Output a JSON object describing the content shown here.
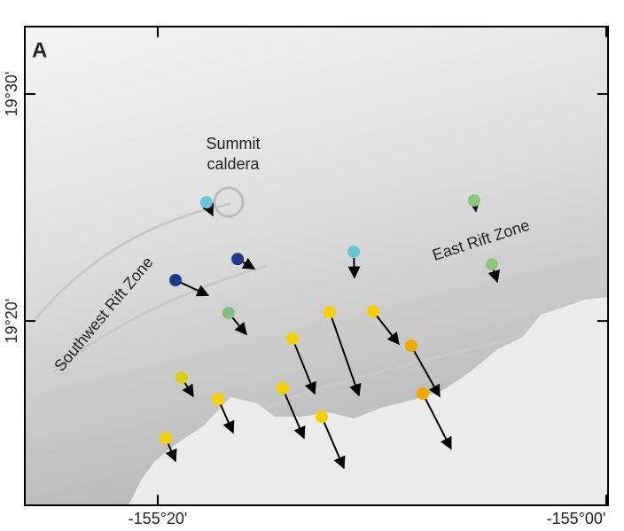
{
  "chart_data": {
    "type": "vector-map",
    "panel_label": "A",
    "labels": {
      "summit": [
        "Summit",
        "caldera"
      ],
      "east_rift": "East Rift Zone",
      "southwest_rift": "Southwest Rift Zone"
    },
    "xlim": [
      -25.93,
      0.08
    ],
    "ylim": [
      11.88,
      32.97
    ],
    "xticks": [
      {
        "value": -20,
        "label": "-155°20'"
      },
      {
        "value": 0,
        "label": "-155°00'"
      }
    ],
    "yticks": [
      {
        "value": 30,
        "label": "19°30'"
      },
      {
        "value": 20,
        "label": "19°20'"
      }
    ],
    "stations": [
      {
        "x": -17.83,
        "y": 25.23,
        "tip_x": -17.55,
        "tip_y": 24.65,
        "color": "#6cc4d8"
      },
      {
        "x": -16.44,
        "y": 22.73,
        "tip_x": -15.69,
        "tip_y": 22.3,
        "color": "#1f3a8a"
      },
      {
        "x": -19.21,
        "y": 21.8,
        "tip_x": -17.75,
        "tip_y": 21.13,
        "color": "#1f3a8a"
      },
      {
        "x": -16.84,
        "y": 20.35,
        "tip_x": -16.05,
        "tip_y": 19.41,
        "color": "#82c080"
      },
      {
        "x": -11.26,
        "y": 23.05,
        "tip_x": -11.23,
        "tip_y": 21.91,
        "color": "#6cc4d8"
      },
      {
        "x": -5.89,
        "y": 25.31,
        "tip_x": -5.81,
        "tip_y": 24.84,
        "color": "#8cc47c"
      },
      {
        "x": -5.1,
        "y": 22.5,
        "tip_x": -4.86,
        "tip_y": 21.72,
        "color": "#8cc47c"
      },
      {
        "x": -10.4,
        "y": 20.43,
        "tip_x": -9.25,
        "tip_y": 18.98,
        "color": "#f5d000"
      },
      {
        "x": -8.7,
        "y": 18.91,
        "tip_x": -7.43,
        "tip_y": 16.68,
        "color": "#f0a800"
      },
      {
        "x": -12.33,
        "y": 20.39,
        "tip_x": -11.03,
        "tip_y": 16.72,
        "color": "#f5d000"
      },
      {
        "x": -13.99,
        "y": 19.22,
        "tip_x": -13.0,
        "tip_y": 16.8,
        "color": "#f5d000"
      },
      {
        "x": -18.93,
        "y": 17.5,
        "tip_x": -18.42,
        "tip_y": 16.68,
        "color": "#d8d010"
      },
      {
        "x": -17.31,
        "y": 16.56,
        "tip_x": -16.64,
        "tip_y": 15.08,
        "color": "#f5d000"
      },
      {
        "x": -14.43,
        "y": 17.03,
        "tip_x": -13.48,
        "tip_y": 14.84,
        "color": "#f5d000"
      },
      {
        "x": -12.69,
        "y": 15.78,
        "tip_x": -11.7,
        "tip_y": 13.52,
        "color": "#f5d000"
      },
      {
        "x": -8.18,
        "y": 16.8,
        "tip_x": -6.92,
        "tip_y": 14.37,
        "color": "#f0a800"
      },
      {
        "x": -19.64,
        "y": 14.84,
        "tip_x": -19.21,
        "tip_y": 13.83,
        "color": "#f5d000"
      }
    ]
  }
}
